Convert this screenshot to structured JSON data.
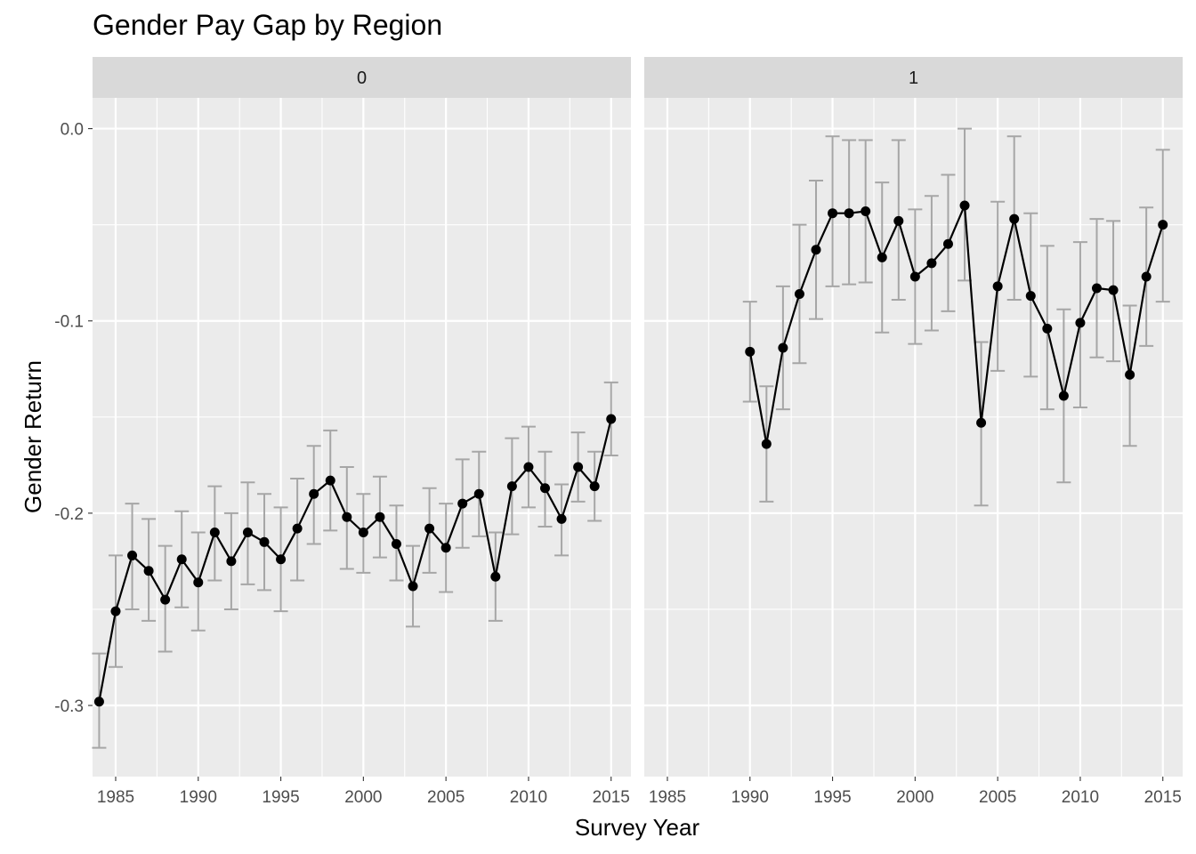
{
  "chart_data": {
    "type": "line",
    "title": "Gender Pay Gap by Region",
    "xlabel": "Survey Year",
    "ylabel": "Gender Return",
    "xlim": [
      1983.6,
      2016.2
    ],
    "ylim": [
      -0.337,
      0.016
    ],
    "x_ticks": [
      1985,
      1990,
      1995,
      2000,
      2005,
      2010,
      2015
    ],
    "y_ticks": [
      0.0,
      -0.1,
      -0.2,
      -0.3
    ],
    "y_tick_labels": [
      "0.0",
      "-0.1",
      "-0.2",
      "-0.3"
    ],
    "grid": true,
    "colors": {
      "panel_bg": "#ebebeb",
      "strip_bg": "#d9d9d9",
      "grid": "#ffffff",
      "line": "#000000",
      "errorbar": "#a6a6a6"
    },
    "panels": [
      {
        "label": "0",
        "x": [
          1984,
          1985,
          1986,
          1987,
          1988,
          1989,
          1990,
          1991,
          1992,
          1993,
          1994,
          1995,
          1996,
          1997,
          1998,
          1999,
          2000,
          2001,
          2002,
          2003,
          2004,
          2005,
          2006,
          2007,
          2008,
          2009,
          2010,
          2011,
          2012,
          2013,
          2014,
          2015
        ],
        "y": [
          -0.298,
          -0.251,
          -0.222,
          -0.23,
          -0.245,
          -0.224,
          -0.236,
          -0.21,
          -0.225,
          -0.21,
          -0.215,
          -0.224,
          -0.208,
          -0.19,
          -0.183,
          -0.202,
          -0.21,
          -0.202,
          -0.216,
          -0.238,
          -0.208,
          -0.218,
          -0.195,
          -0.19,
          -0.233,
          -0.186,
          -0.176,
          -0.187,
          -0.203,
          -0.176,
          -0.186,
          -0.151
        ],
        "ymin": [
          -0.322,
          -0.28,
          -0.25,
          -0.256,
          -0.272,
          -0.249,
          -0.261,
          -0.235,
          -0.25,
          -0.237,
          -0.24,
          -0.251,
          -0.235,
          -0.216,
          -0.209,
          -0.229,
          -0.231,
          -0.223,
          -0.235,
          -0.259,
          -0.231,
          -0.241,
          -0.218,
          -0.212,
          -0.256,
          -0.211,
          -0.197,
          -0.207,
          -0.222,
          -0.194,
          -0.204,
          -0.17
        ],
        "ymax": [
          -0.273,
          -0.222,
          -0.195,
          -0.203,
          -0.217,
          -0.199,
          -0.21,
          -0.186,
          -0.2,
          -0.184,
          -0.19,
          -0.197,
          -0.182,
          -0.165,
          -0.157,
          -0.176,
          -0.19,
          -0.181,
          -0.196,
          -0.217,
          -0.187,
          -0.195,
          -0.172,
          -0.168,
          -0.21,
          -0.161,
          -0.155,
          -0.168,
          -0.185,
          -0.158,
          -0.168,
          -0.132
        ]
      },
      {
        "label": "1",
        "x": [
          1990,
          1991,
          1992,
          1993,
          1994,
          1995,
          1996,
          1997,
          1998,
          1999,
          2000,
          2001,
          2002,
          2003,
          2004,
          2005,
          2006,
          2007,
          2008,
          2009,
          2010,
          2011,
          2012,
          2013,
          2014,
          2015
        ],
        "y": [
          -0.116,
          -0.164,
          -0.114,
          -0.086,
          -0.063,
          -0.044,
          -0.044,
          -0.043,
          -0.067,
          -0.048,
          -0.077,
          -0.07,
          -0.06,
          -0.04,
          -0.153,
          -0.082,
          -0.047,
          -0.087,
          -0.104,
          -0.139,
          -0.101,
          -0.083,
          -0.084,
          -0.128,
          -0.077,
          -0.05
        ],
        "ymin": [
          -0.142,
          -0.194,
          -0.146,
          -0.122,
          -0.099,
          -0.082,
          -0.081,
          -0.08,
          -0.106,
          -0.089,
          -0.112,
          -0.105,
          -0.095,
          -0.079,
          -0.196,
          -0.126,
          -0.089,
          -0.129,
          -0.146,
          -0.184,
          -0.145,
          -0.119,
          -0.121,
          -0.165,
          -0.113,
          -0.09
        ],
        "ymax": [
          -0.09,
          -0.134,
          -0.082,
          -0.05,
          -0.027,
          -0.004,
          -0.006,
          -0.006,
          -0.028,
          -0.006,
          -0.042,
          -0.035,
          -0.024,
          0.0,
          -0.111,
          -0.038,
          -0.004,
          -0.044,
          -0.061,
          -0.094,
          -0.059,
          -0.047,
          -0.048,
          -0.092,
          -0.041,
          -0.011
        ]
      }
    ]
  }
}
